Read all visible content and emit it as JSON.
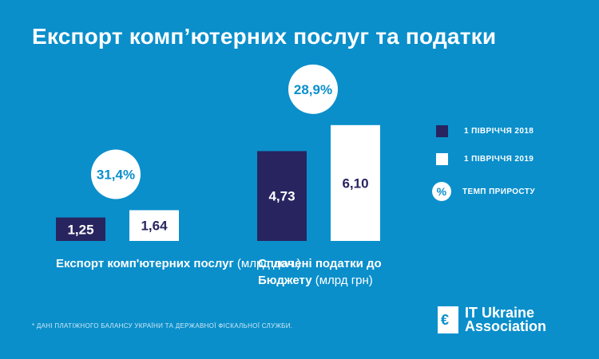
{
  "title": "Експорт комп’ютерних послуг та податки",
  "colors": {
    "background": "#0a8fcb",
    "series_2018": "#28245f",
    "series_2019": "#ffffff",
    "accent_text": "#0a8fcb"
  },
  "chart_data": [
    {
      "type": "bar",
      "categories": [
        "1 ПІВРІЧЧЯ 2018",
        "1 ПІВРІЧЧЯ 2019"
      ],
      "values": [
        1.25,
        1.64
      ],
      "value_labels": [
        "1,25",
        "1,64"
      ],
      "growth_label": "31,4%",
      "label_bold": "Експорт комп'ютерних послуг",
      "label_unit": "(млрд дол.)"
    },
    {
      "type": "bar",
      "categories": [
        "1 ПІВРІЧЧЯ 2018",
        "1 ПІВРІЧЧЯ 2019"
      ],
      "values": [
        4.73,
        6.1
      ],
      "value_labels": [
        "4,73",
        "6,10"
      ],
      "growth_label": "28,9%",
      "label_bold": "Сплачені податки до Бюджету",
      "label_unit": "(млрд грн)"
    }
  ],
  "legend": {
    "series_2018": "1 ПІВРІЧЧЯ 2018",
    "series_2019": "1 ПІВРІЧЧЯ 2019",
    "growth_symbol": "%",
    "growth_label": "ТЕМП ПРИРОСТУ"
  },
  "footnote": "* ДАНІ ПЛАТІЖНОГО БАЛАНСУ УКРАЇНИ ТА ДЕРЖАВНОЇ ФІСКАЛЬНОЇ СЛУЖБИ.",
  "logo": {
    "mark": "€",
    "line1": "IT Ukraine",
    "line2": "Association"
  }
}
